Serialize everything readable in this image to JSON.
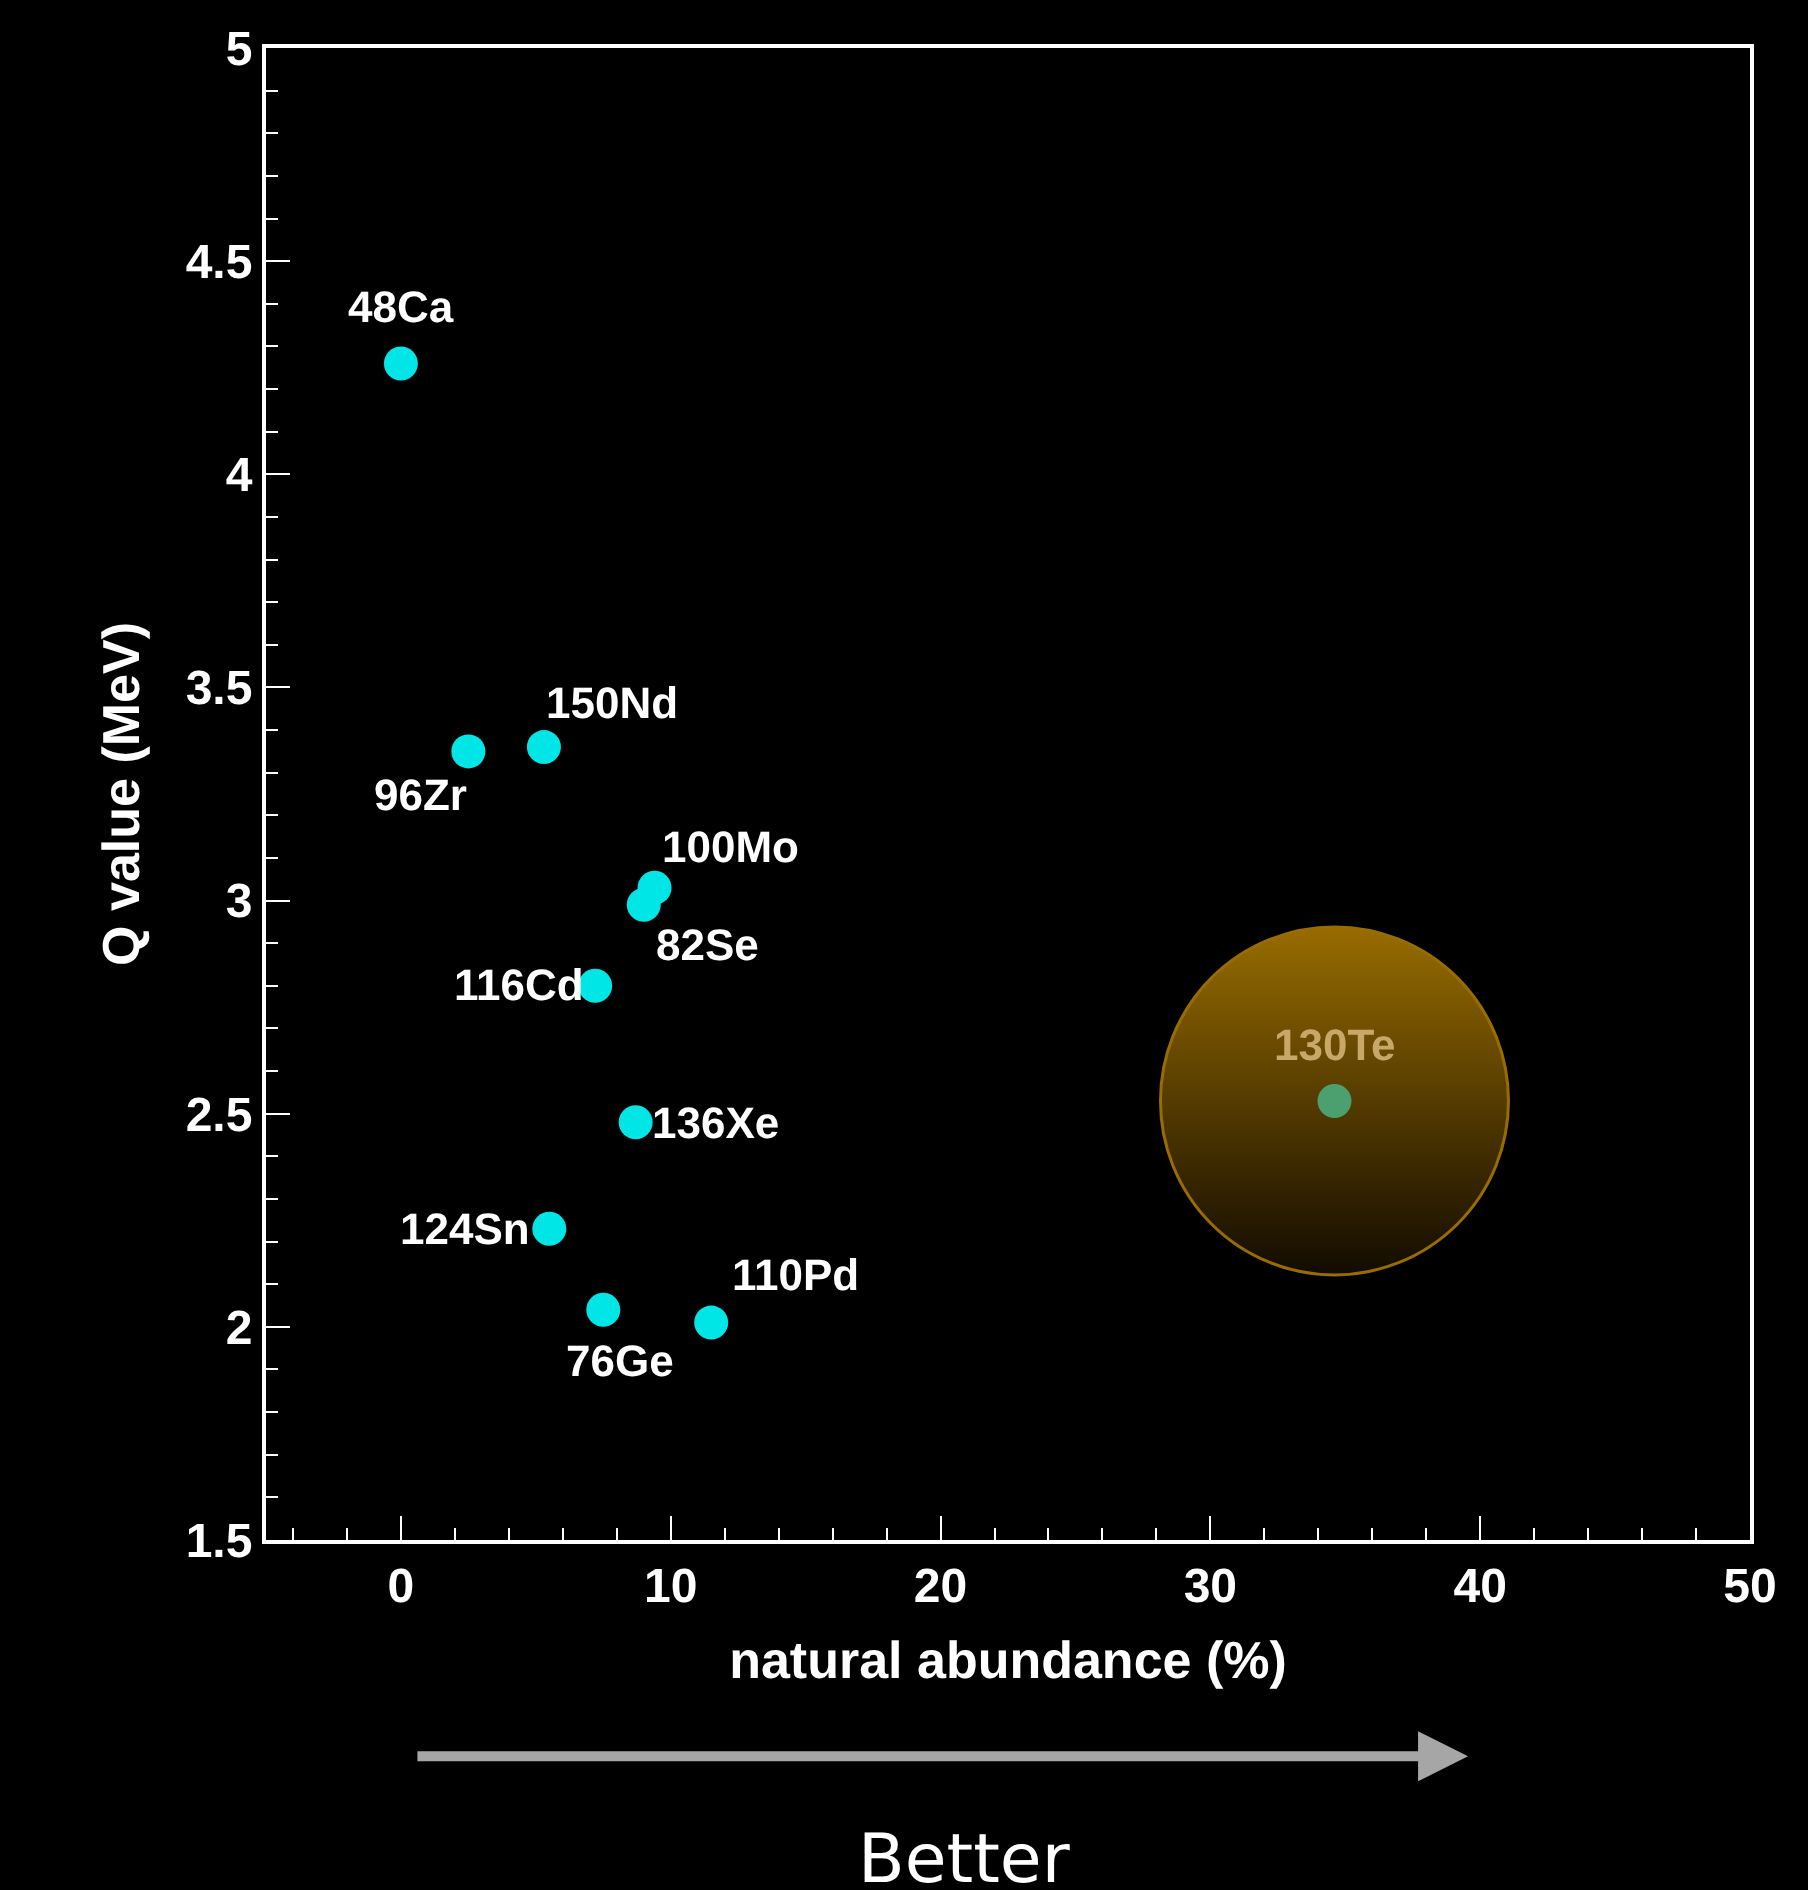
{
  "chart_data": {
    "type": "scatter",
    "xlabel": "natural abundance (%)",
    "ylabel": "Q value (MeV)",
    "xlim": [
      -5,
      50
    ],
    "xticks": [
      0,
      10,
      20,
      30,
      40,
      50
    ],
    "ylim": [
      1.5,
      5
    ],
    "yticks": [
      1.5,
      2,
      2.5,
      3,
      3.5,
      4,
      4.5,
      5
    ],
    "grid": false,
    "marker": "circle",
    "series": [
      {
        "type": "bubble",
        "color": "#d89a00",
        "x": [
          34.6
        ],
        "values": [
          2.53
        ],
        "sizes": [
          1
        ]
      },
      {
        "color": "#00e5e5",
        "colors": [
          "#00e5e5",
          "#00e5e5",
          "#00e5e5",
          "#00e5e5",
          "#00e5e5",
          "#00e5e5",
          "#00e5e5",
          "#00e5e5",
          "#00e5e5",
          "#00e5e5",
          "#4ca070"
        ],
        "x": [
          0,
          2.5,
          5.3,
          9.4,
          9.0,
          7.2,
          8.7,
          5.5,
          7.5,
          11.5,
          34.6
        ],
        "values": [
          4.26,
          3.35,
          3.36,
          3.03,
          2.99,
          2.8,
          2.48,
          2.23,
          2.04,
          2.01,
          2.53
        ]
      }
    ],
    "annotations": [
      {
        "text": "48Ca",
        "x": 0,
        "y": 4.26
      },
      {
        "text": "96Zr",
        "x": 2.5,
        "y": 3.35
      },
      {
        "text": "150Nd",
        "x": 5.3,
        "y": 3.36
      },
      {
        "text": "100Mo",
        "x": 9.4,
        "y": 3.03
      },
      {
        "text": "82Se",
        "x": 9.0,
        "y": 2.99
      },
      {
        "text": "116Cd",
        "x": 7.2,
        "y": 2.8
      },
      {
        "text": "136Xe",
        "x": 8.7,
        "y": 2.48
      },
      {
        "text": "124Sn",
        "x": 5.5,
        "y": 2.23
      },
      {
        "text": "76Ge",
        "x": 7.5,
        "y": 2.04
      },
      {
        "text": "110Pd",
        "x": 11.5,
        "y": 2.01
      },
      {
        "text": "130Te",
        "x": 34.6,
        "y": 2.53
      },
      "Better"
    ]
  }
}
